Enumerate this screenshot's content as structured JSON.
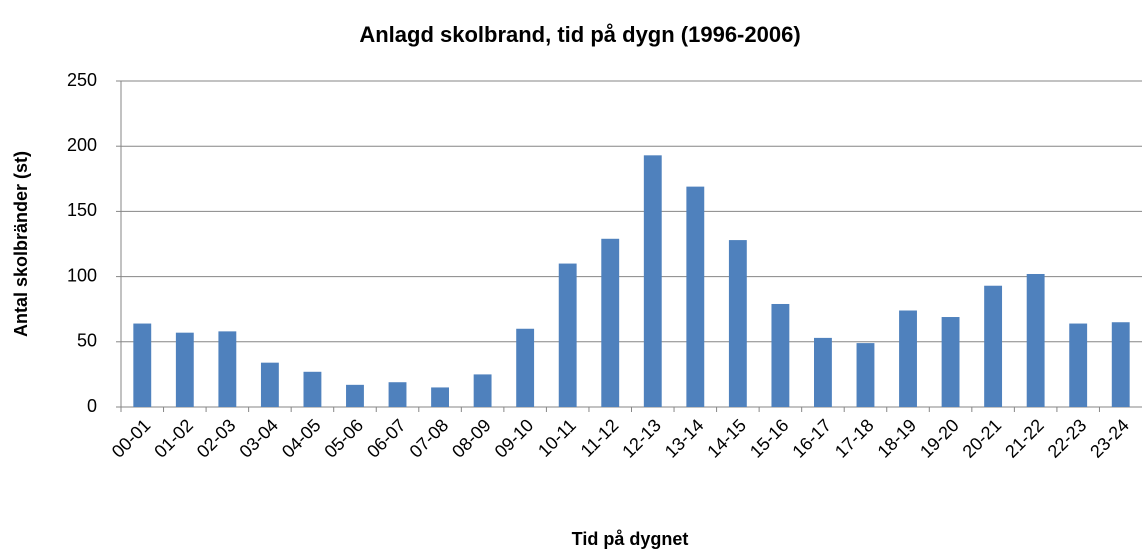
{
  "chart_data": {
    "type": "bar",
    "title": "Anlagd skolbrand, tid på dygn (1996-2006)",
    "x_label": "Tid på dygnet",
    "y_label": "Antal skolbränder (st)",
    "categories": [
      "00-01",
      "01-02",
      "02-03",
      "03-04",
      "04-05",
      "05-06",
      "06-07",
      "07-08",
      "08-09",
      "09-10",
      "10-11",
      "11-12",
      "12-13",
      "13-14",
      "14-15",
      "15-16",
      "16-17",
      "17-18",
      "18-19",
      "19-20",
      "20-21",
      "21-22",
      "22-23",
      "23-24"
    ],
    "values": [
      64,
      57,
      58,
      34,
      27,
      17,
      19,
      15,
      25,
      60,
      110,
      129,
      193,
      169,
      128,
      79,
      53,
      49,
      74,
      69,
      93,
      102,
      64,
      65
    ],
    "color": "#4f81bd",
    "ylim": [
      0,
      250
    ],
    "yticks": [
      0,
      50,
      100,
      150,
      200,
      250
    ],
    "grid": true
  }
}
